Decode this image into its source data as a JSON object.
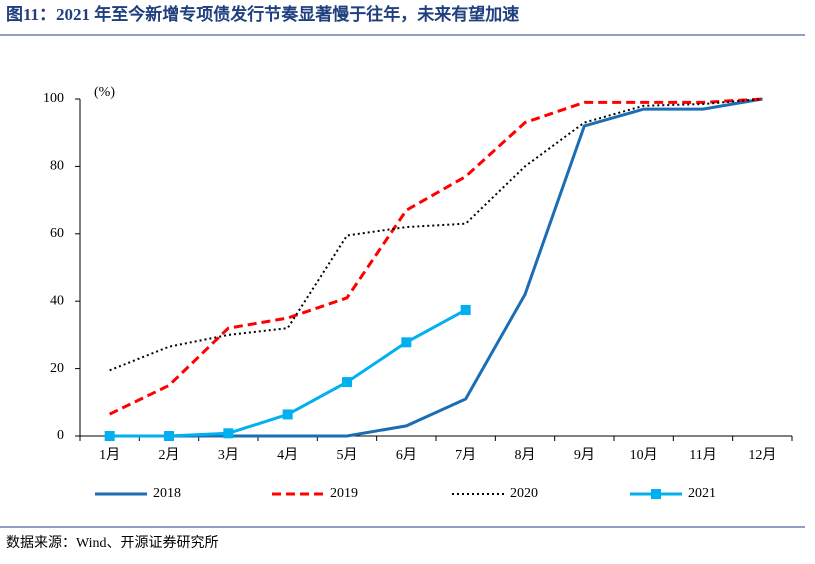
{
  "chart_data": {
    "type": "line",
    "title": "图11：2021 年至今新增专项债发行节奏显著慢于往年，未来有望加速",
    "ylabel": "(%)",
    "source": "数据来源：Wind、开源证券研究所",
    "categories": [
      "1月",
      "2月",
      "3月",
      "4月",
      "5月",
      "6月",
      "7月",
      "8月",
      "9月",
      "10月",
      "11月",
      "12月"
    ],
    "series": [
      {
        "name": "2018",
        "color": "#1b6db4",
        "style": "solid",
        "values": [
          0,
          0,
          0,
          0,
          0,
          3,
          11,
          42,
          92,
          97,
          97,
          100
        ]
      },
      {
        "name": "2019",
        "color": "#ff0000",
        "style": "dashed",
        "values": [
          6.5,
          15,
          32,
          35,
          41,
          67,
          77,
          93,
          99,
          99,
          99,
          100
        ]
      },
      {
        "name": "2020",
        "color": "#000000",
        "style": "dotted",
        "values": [
          19.5,
          26.5,
          30,
          32,
          59.5,
          62,
          63,
          80,
          93,
          98,
          98.5,
          100
        ]
      },
      {
        "name": "2021",
        "color": "#00b0f0",
        "style": "solid",
        "marker": "square",
        "values": [
          0,
          0,
          0.8,
          6.4,
          16,
          27.8,
          37.4,
          null,
          null,
          null,
          null,
          null
        ]
      }
    ],
    "ylim": [
      0,
      100
    ],
    "yticks": [
      0,
      20,
      40,
      60,
      80,
      100
    ],
    "grid": false,
    "legend": "bottom"
  }
}
